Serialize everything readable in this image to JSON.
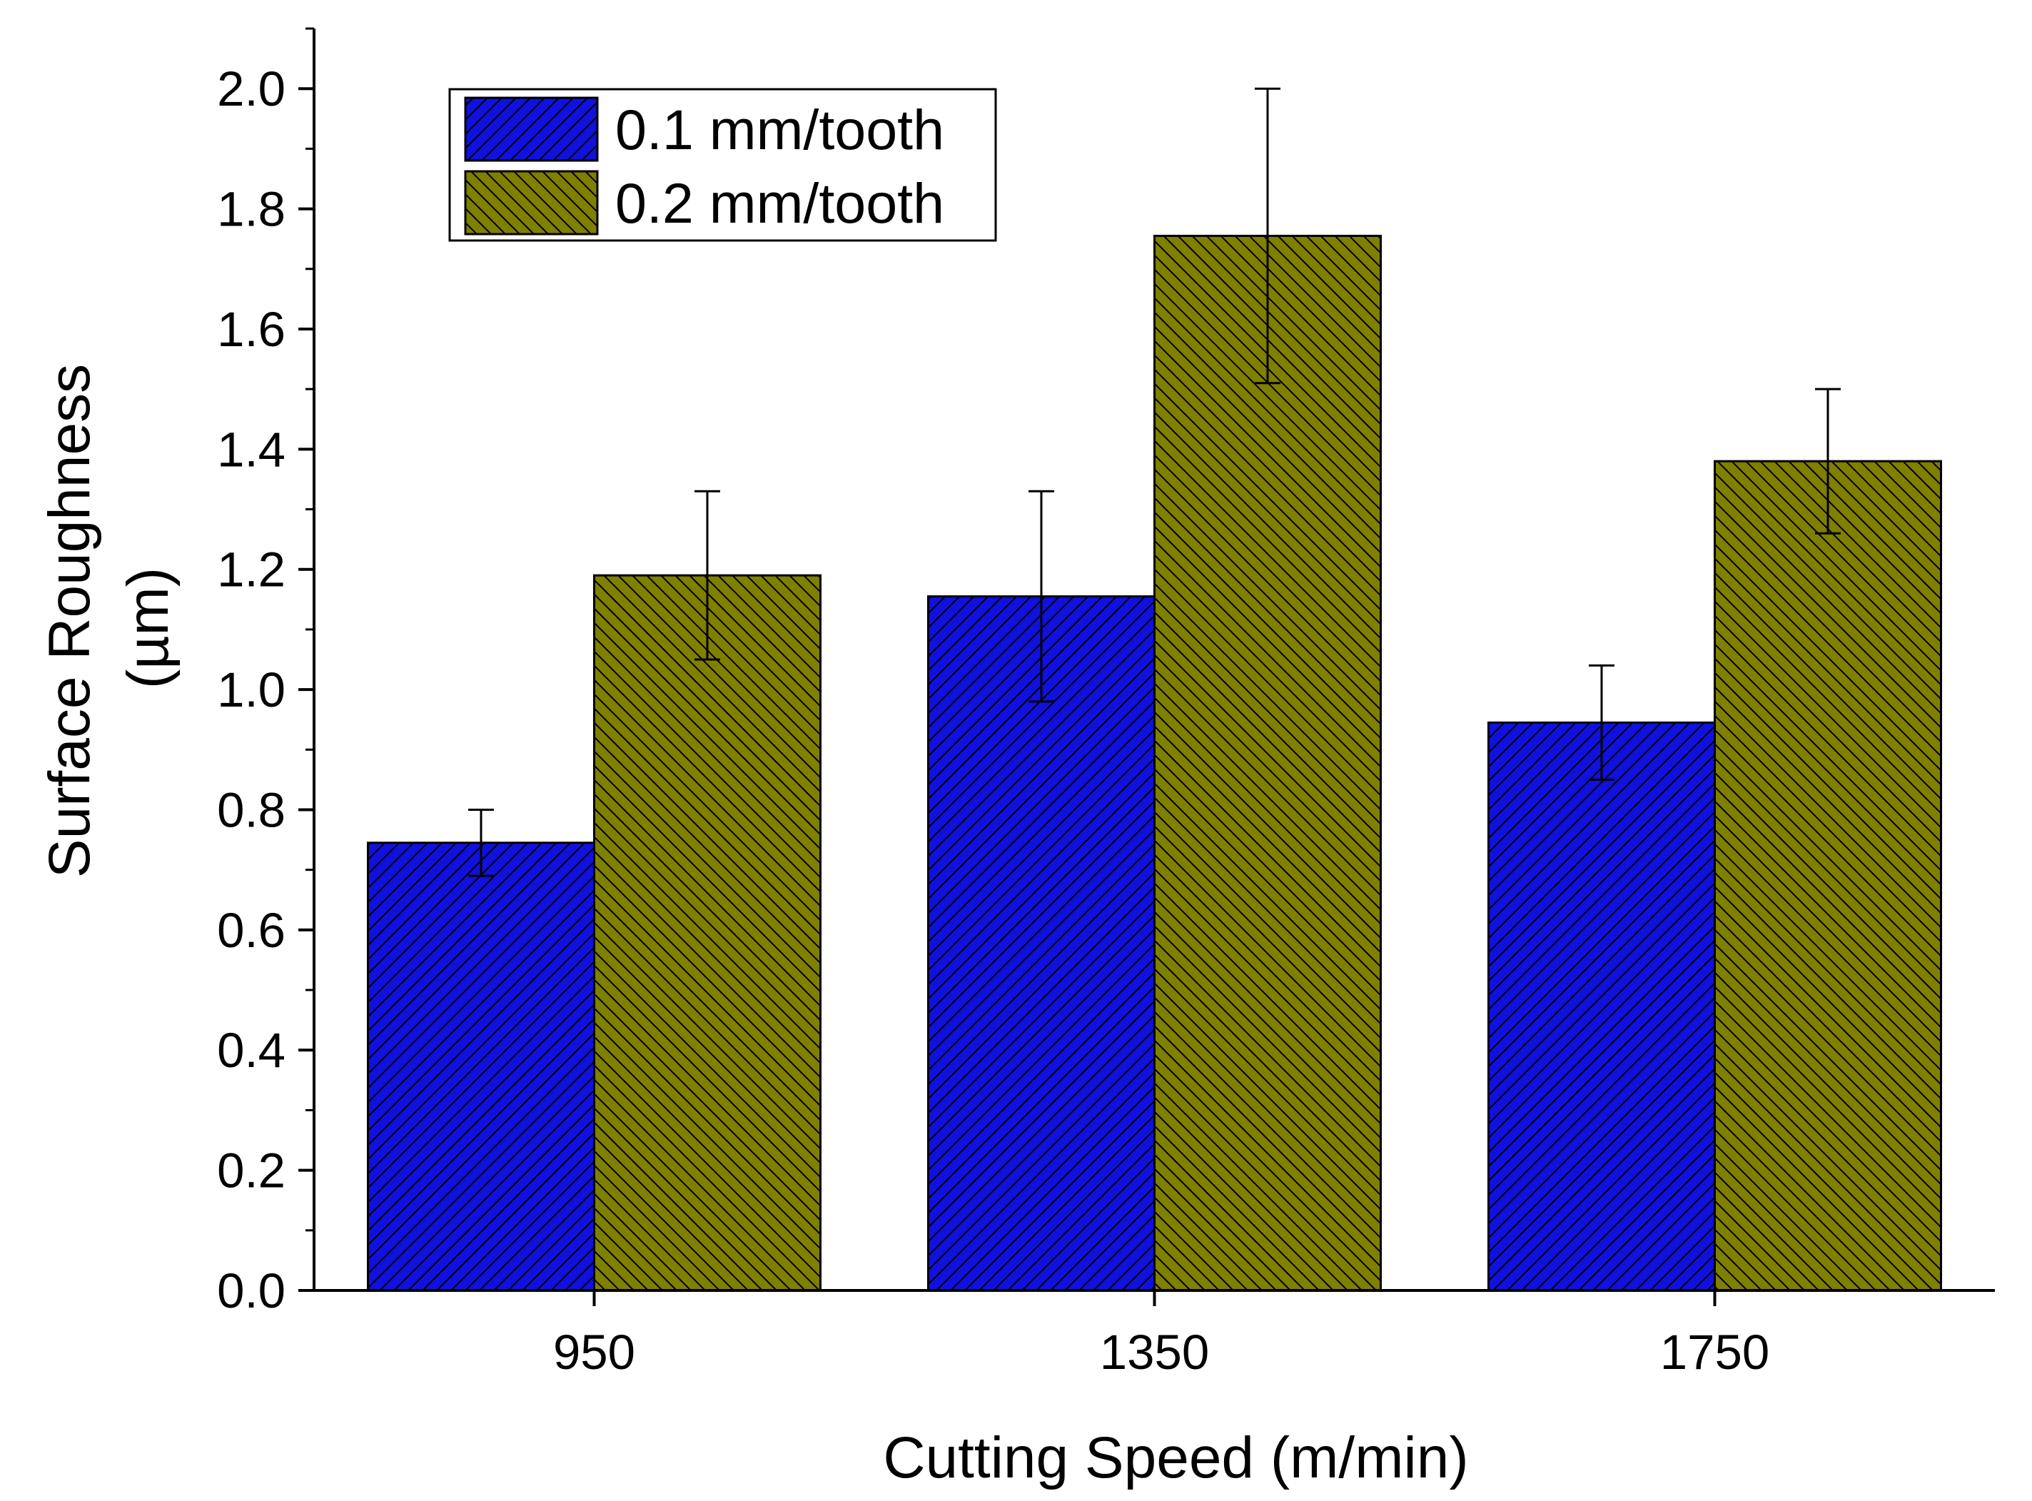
{
  "chart_data": {
    "type": "bar",
    "categories": [
      "950",
      "1350",
      "1750"
    ],
    "series": [
      {
        "name": "0.1 mm/tooth",
        "values": [
          0.745,
          1.155,
          0.945
        ],
        "errors": [
          0.055,
          0.175,
          0.095
        ],
        "color": "#1111dd"
      },
      {
        "name": "0.2 mm/tooth",
        "values": [
          1.19,
          1.755,
          1.38
        ],
        "errors": [
          0.14,
          0.245,
          0.12
        ],
        "color": "#7f7f00"
      }
    ],
    "xlabel": "Cutting Speed (m/min)",
    "ylabel": "Surface Roughness",
    "ylabel_unit": "(µm)",
    "ylim": [
      0,
      2.1
    ],
    "yticks": [
      "0.0",
      "0.2",
      "0.4",
      "0.6",
      "0.8",
      "1.0",
      "1.2",
      "1.4",
      "1.6",
      "1.8",
      "2.0"
    ],
    "legend_position": "top-left",
    "grid": false
  }
}
